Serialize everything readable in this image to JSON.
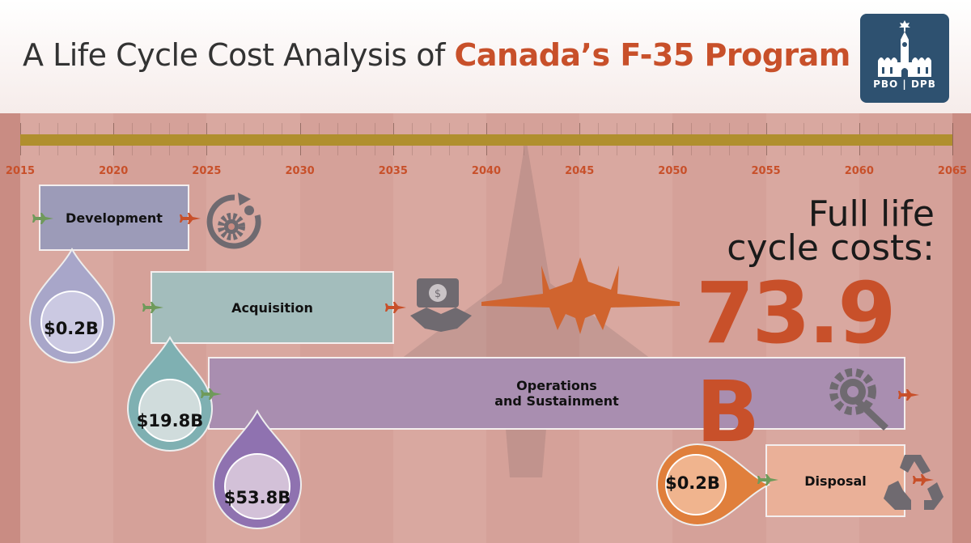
{
  "header": {
    "title_prefix": "A Life Cycle Cost Analysis of ",
    "title_highlight": "Canada’s F-35 Program",
    "logo_text": "PBO | DPB"
  },
  "timeline": {
    "years": [
      "2015",
      "2020",
      "2025",
      "2030",
      "2035",
      "2040",
      "2045",
      "2050",
      "2055",
      "2060",
      "2065"
    ]
  },
  "phases": {
    "development": {
      "label": "Development",
      "cost": "$0.2B",
      "start": 2016,
      "end": 2024
    },
    "acquisition": {
      "label": "Acquisition",
      "cost": "$19.8B",
      "start": 2022,
      "end": 2035
    },
    "operations": {
      "label_line1": "Operations",
      "label_line2": "and Sustainment",
      "cost": "$53.8B",
      "start": 2025,
      "end": 2062
    },
    "disposal": {
      "label": "Disposal",
      "cost": "$0.2B",
      "start": 2055,
      "end": 2062
    }
  },
  "summary": {
    "line1": "Full life",
    "line2": "cycle costs:",
    "total": "73.9 B"
  },
  "colors": {
    "accent": "#c8502a",
    "timeline_bar": "#b08f2e",
    "logo_bg": "#2e5170"
  }
}
